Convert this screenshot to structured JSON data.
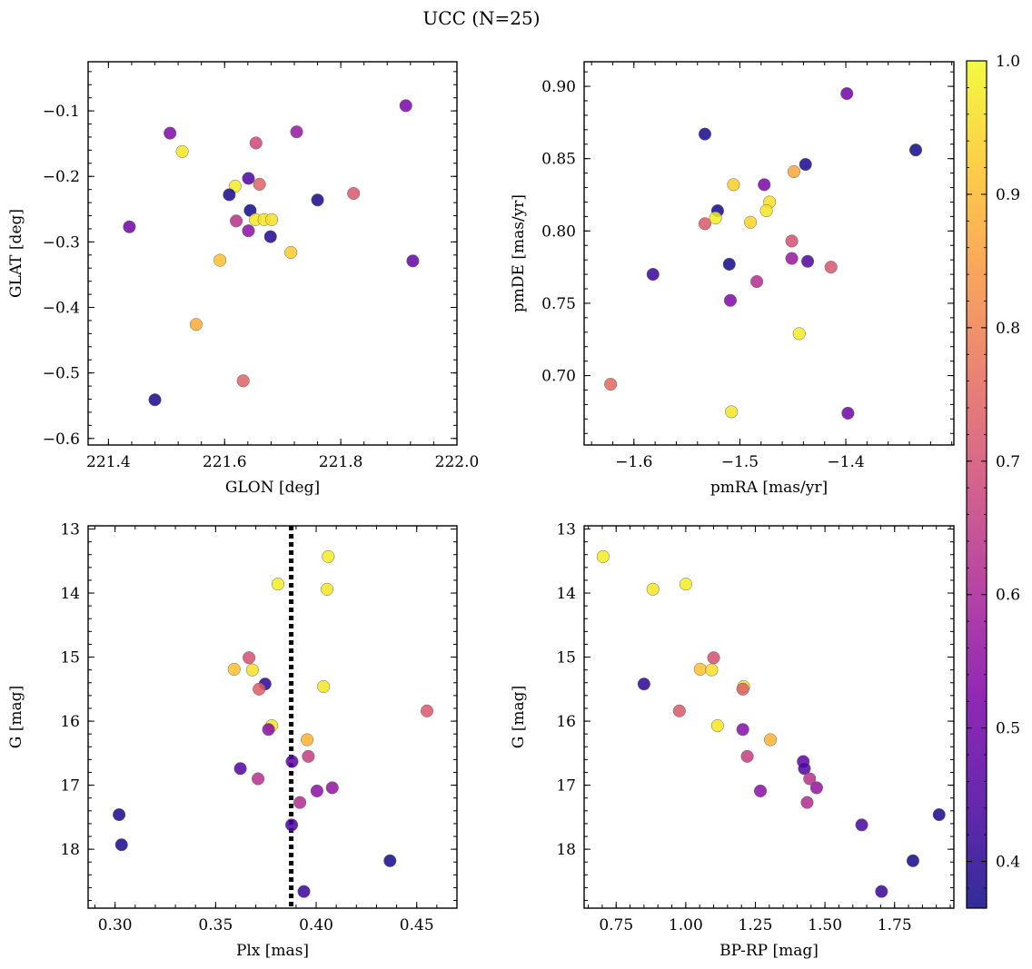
{
  "chart_data": {
    "title": "UCC (N=25)",
    "type": "scatter",
    "colorbar": {
      "range": [
        0.365,
        1.0
      ],
      "ticks": [
        "0.4",
        "0.5",
        "0.6",
        "0.7",
        "0.8",
        "0.9",
        "1.0"
      ],
      "tick_values": [
        0.4,
        0.5,
        0.6,
        0.7,
        0.8,
        0.9,
        1.0
      ],
      "colormap": "plasma"
    },
    "panels": [
      {
        "id": "glon-glat",
        "xlabel": "GLON [deg]",
        "ylabel": "GLAT [deg]",
        "xlim": [
          221.365,
          222.0
        ],
        "ylim": [
          -0.61,
          -0.025
        ],
        "y_inverted": false,
        "xticks": [
          221.4,
          221.6,
          221.8,
          222.0
        ],
        "xtick_labels": [
          "221.4",
          "221.6",
          "221.8",
          "222.0"
        ],
        "yticks": [
          -0.1,
          -0.2,
          -0.3,
          -0.4,
          -0.5,
          -0.6
        ],
        "ytick_labels": [
          "−0.1",
          "−0.2",
          "−0.3",
          "−0.4",
          "−0.5",
          "−0.6"
        ],
        "points": [
          {
            "x": 221.912,
            "y": -0.092,
            "c": 0.52
          },
          {
            "x": 221.506,
            "y": -0.134,
            "c": 0.53
          },
          {
            "x": 221.724,
            "y": -0.132,
            "c": 0.57
          },
          {
            "x": 221.654,
            "y": -0.149,
            "c": 0.68
          },
          {
            "x": 221.527,
            "y": -0.162,
            "c": 0.97
          },
          {
            "x": 221.641,
            "y": -0.203,
            "c": 0.45
          },
          {
            "x": 221.618,
            "y": -0.215,
            "c": 0.98
          },
          {
            "x": 221.66,
            "y": -0.212,
            "c": 0.74
          },
          {
            "x": 221.608,
            "y": -0.228,
            "c": 0.38
          },
          {
            "x": 221.76,
            "y": -0.236,
            "c": 0.38
          },
          {
            "x": 221.822,
            "y": -0.226,
            "c": 0.72
          },
          {
            "x": 221.644,
            "y": -0.252,
            "c": 0.37
          },
          {
            "x": 221.62,
            "y": -0.268,
            "c": 0.63
          },
          {
            "x": 221.653,
            "y": -0.266,
            "c": 0.97
          },
          {
            "x": 221.668,
            "y": -0.266,
            "c": 0.97
          },
          {
            "x": 221.681,
            "y": -0.266,
            "c": 0.96
          },
          {
            "x": 221.436,
            "y": -0.277,
            "c": 0.5
          },
          {
            "x": 221.641,
            "y": -0.283,
            "c": 0.55
          },
          {
            "x": 221.679,
            "y": -0.292,
            "c": 0.39
          },
          {
            "x": 221.714,
            "y": -0.316,
            "c": 0.93
          },
          {
            "x": 221.592,
            "y": -0.328,
            "c": 0.91
          },
          {
            "x": 221.924,
            "y": -0.329,
            "c": 0.48
          },
          {
            "x": 221.551,
            "y": -0.426,
            "c": 0.88
          },
          {
            "x": 221.632,
            "y": -0.512,
            "c": 0.74
          },
          {
            "x": 221.48,
            "y": -0.541,
            "c": 0.38
          }
        ]
      },
      {
        "id": "pmra-pmde",
        "xlabel": "pmRA [mas/yr]",
        "ylabel": "pmDE [mas/yr]",
        "xlim": [
          -1.647,
          -1.298
        ],
        "ylim": [
          0.652,
          0.917
        ],
        "y_inverted": false,
        "xticks": [
          -1.6,
          -1.5,
          -1.4
        ],
        "xtick_labels": [
          "−1.6",
          "−1.5",
          "−1.4"
        ],
        "yticks": [
          0.7,
          0.75,
          0.8,
          0.85,
          0.9
        ],
        "ytick_labels": [
          "0.70",
          "0.75",
          "0.80",
          "0.85",
          "0.90"
        ],
        "points": [
          {
            "x": -1.399,
            "y": 0.895,
            "c": 0.5
          },
          {
            "x": -1.533,
            "y": 0.867,
            "c": 0.38
          },
          {
            "x": -1.334,
            "y": 0.856,
            "c": 0.37
          },
          {
            "x": -1.438,
            "y": 0.846,
            "c": 0.38
          },
          {
            "x": -1.449,
            "y": 0.841,
            "c": 0.87
          },
          {
            "x": -1.506,
            "y": 0.832,
            "c": 0.93
          },
          {
            "x": -1.477,
            "y": 0.832,
            "c": 0.52
          },
          {
            "x": -1.472,
            "y": 0.82,
            "c": 0.96
          },
          {
            "x": -1.521,
            "y": 0.814,
            "c": 0.37
          },
          {
            "x": -1.475,
            "y": 0.814,
            "c": 0.97
          },
          {
            "x": -1.523,
            "y": 0.809,
            "c": 0.98
          },
          {
            "x": -1.49,
            "y": 0.806,
            "c": 0.94
          },
          {
            "x": -1.533,
            "y": 0.805,
            "c": 0.72
          },
          {
            "x": -1.451,
            "y": 0.793,
            "c": 0.7
          },
          {
            "x": -1.451,
            "y": 0.781,
            "c": 0.57
          },
          {
            "x": -1.436,
            "y": 0.779,
            "c": 0.45
          },
          {
            "x": -1.51,
            "y": 0.777,
            "c": 0.37
          },
          {
            "x": -1.414,
            "y": 0.775,
            "c": 0.71
          },
          {
            "x": -1.582,
            "y": 0.77,
            "c": 0.42
          },
          {
            "x": -1.484,
            "y": 0.765,
            "c": 0.62
          },
          {
            "x": -1.509,
            "y": 0.752,
            "c": 0.53
          },
          {
            "x": -1.444,
            "y": 0.729,
            "c": 0.98
          },
          {
            "x": -1.622,
            "y": 0.694,
            "c": 0.75
          },
          {
            "x": -1.508,
            "y": 0.675,
            "c": 0.97
          },
          {
            "x": -1.398,
            "y": 0.674,
            "c": 0.5
          }
        ]
      },
      {
        "id": "plx-g",
        "xlabel": "Plx [mas]",
        "ylabel": "G [mag]",
        "xlim": [
          0.2866,
          0.47
        ],
        "ylim": [
          12.95,
          18.92
        ],
        "y_inverted": true,
        "xticks": [
          0.3,
          0.35,
          0.4,
          0.45
        ],
        "xtick_labels": [
          "0.30",
          "0.35",
          "0.40",
          "0.45"
        ],
        "yticks": [
          13,
          14,
          15,
          16,
          17,
          18
        ],
        "ytick_labels": [
          "13",
          "14",
          "15",
          "16",
          "17",
          "18"
        ],
        "vline": {
          "x": 0.3876
        },
        "points": [
          {
            "x": 0.406,
            "y": 13.43,
            "c": 0.98
          },
          {
            "x": 0.381,
            "y": 13.86,
            "c": 0.98
          },
          {
            "x": 0.4054,
            "y": 13.94,
            "c": 0.97
          },
          {
            "x": 0.3666,
            "y": 15.01,
            "c": 0.7
          },
          {
            "x": 0.3592,
            "y": 15.19,
            "c": 0.91
          },
          {
            "x": 0.3683,
            "y": 15.2,
            "c": 0.96
          },
          {
            "x": 0.3746,
            "y": 15.42,
            "c": 0.4
          },
          {
            "x": 0.4037,
            "y": 15.46,
            "c": 0.97
          },
          {
            "x": 0.3716,
            "y": 15.5,
            "c": 0.73
          },
          {
            "x": 0.4551,
            "y": 15.84,
            "c": 0.72
          },
          {
            "x": 0.3779,
            "y": 16.07,
            "c": 0.97
          },
          {
            "x": 0.3763,
            "y": 16.13,
            "c": 0.54
          },
          {
            "x": 0.3955,
            "y": 16.29,
            "c": 0.89
          },
          {
            "x": 0.3961,
            "y": 16.55,
            "c": 0.66
          },
          {
            "x": 0.388,
            "y": 16.63,
            "c": 0.47
          },
          {
            "x": 0.3623,
            "y": 16.74,
            "c": 0.45
          },
          {
            "x": 0.3711,
            "y": 16.9,
            "c": 0.63
          },
          {
            "x": 0.408,
            "y": 17.04,
            "c": 0.56
          },
          {
            "x": 0.4004,
            "y": 17.09,
            "c": 0.55
          },
          {
            "x": 0.3919,
            "y": 17.27,
            "c": 0.62
          },
          {
            "x": 0.302,
            "y": 17.46,
            "c": 0.38
          },
          {
            "x": 0.3878,
            "y": 17.62,
            "c": 0.44
          },
          {
            "x": 0.3032,
            "y": 17.93,
            "c": 0.38
          },
          {
            "x": 0.4367,
            "y": 18.18,
            "c": 0.37
          },
          {
            "x": 0.3939,
            "y": 18.66,
            "c": 0.42
          }
        ]
      },
      {
        "id": "bprp-g",
        "xlabel": "BP-RP [mag]",
        "ylabel": "G [mag]",
        "xlim": [
          0.635,
          1.963
        ],
        "ylim": [
          12.95,
          18.92
        ],
        "y_inverted": true,
        "xticks": [
          0.75,
          1.0,
          1.25,
          1.5,
          1.75
        ],
        "xtick_labels": [
          "0.75",
          "1.00",
          "1.25",
          "1.50",
          "1.75"
        ],
        "yticks": [
          13,
          14,
          15,
          16,
          17,
          18
        ],
        "ytick_labels": [
          "13",
          "14",
          "15",
          "16",
          "17",
          "18"
        ],
        "points": [
          {
            "x": 0.703,
            "y": 13.43,
            "c": 0.98
          },
          {
            "x": 1.0,
            "y": 13.86,
            "c": 0.98
          },
          {
            "x": 0.882,
            "y": 13.94,
            "c": 0.97
          },
          {
            "x": 1.1,
            "y": 15.01,
            "c": 0.7
          },
          {
            "x": 1.052,
            "y": 15.19,
            "c": 0.91
          },
          {
            "x": 1.093,
            "y": 15.2,
            "c": 0.96
          },
          {
            "x": 0.85,
            "y": 15.42,
            "c": 0.4
          },
          {
            "x": 1.208,
            "y": 15.46,
            "c": 0.97
          },
          {
            "x": 1.205,
            "y": 15.5,
            "c": 0.73
          },
          {
            "x": 0.977,
            "y": 15.84,
            "c": 0.72
          },
          {
            "x": 1.114,
            "y": 16.07,
            "c": 0.97
          },
          {
            "x": 1.205,
            "y": 16.13,
            "c": 0.54
          },
          {
            "x": 1.304,
            "y": 16.29,
            "c": 0.89
          },
          {
            "x": 1.221,
            "y": 16.55,
            "c": 0.66
          },
          {
            "x": 1.422,
            "y": 16.63,
            "c": 0.47
          },
          {
            "x": 1.426,
            "y": 16.74,
            "c": 0.45
          },
          {
            "x": 1.445,
            "y": 16.9,
            "c": 0.63
          },
          {
            "x": 1.47,
            "y": 17.04,
            "c": 0.56
          },
          {
            "x": 1.268,
            "y": 17.09,
            "c": 0.55
          },
          {
            "x": 1.436,
            "y": 17.27,
            "c": 0.62
          },
          {
            "x": 1.91,
            "y": 17.46,
            "c": 0.38
          },
          {
            "x": 1.632,
            "y": 17.62,
            "c": 0.44
          },
          {
            "x": 1.816,
            "y": 18.18,
            "c": 0.37
          },
          {
            "x": 1.703,
            "y": 18.66,
            "c": 0.42
          }
        ]
      }
    ]
  }
}
